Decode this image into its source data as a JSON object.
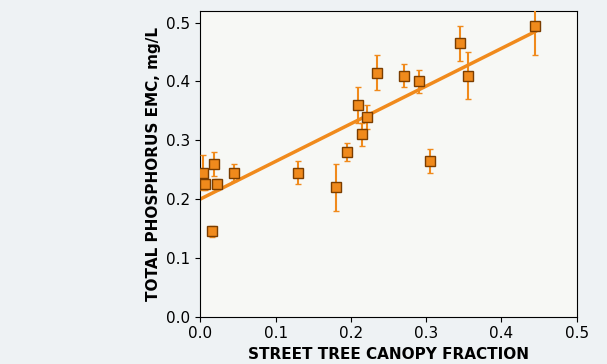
{
  "chart_data": {
    "type": "scatter",
    "x_label": "STREET TREE CANOPY FRACTION",
    "y_label": "TOTAL PHOSPHORUS EMC, mg/L",
    "xlim": [
      0.0,
      0.5
    ],
    "xticks": [
      0.0,
      0.1,
      0.2,
      0.3,
      0.4,
      0.5
    ],
    "ylim": [
      0.0,
      0.52
    ],
    "yticks": [
      0.0,
      0.1,
      0.2,
      0.3,
      0.4,
      0.5
    ],
    "grid": false,
    "series": [
      {
        "type": "scatter",
        "color": "#f08a1c",
        "marker": "square",
        "x": [
          0.003,
          0.006,
          0.015,
          0.018,
          0.022,
          0.045,
          0.13,
          0.18,
          0.195,
          0.21,
          0.215,
          0.222,
          0.235,
          0.27,
          0.29,
          0.305,
          0.345,
          0.355,
          0.445
        ],
        "values": [
          0.245,
          0.225,
          0.145,
          0.26,
          0.225,
          0.245,
          0.245,
          0.22,
          0.28,
          0.36,
          0.31,
          0.34,
          0.415,
          0.41,
          0.4,
          0.265,
          0.465,
          0.41,
          0.495
        ],
        "errors": [
          0.03,
          0.01,
          0.01,
          0.02,
          0.01,
          0.015,
          0.02,
          0.04,
          0.015,
          0.03,
          0.02,
          0.02,
          0.03,
          0.02,
          0.02,
          0.02,
          0.03,
          0.04,
          0.05
        ]
      },
      {
        "type": "line",
        "color": "#f08a1c",
        "line_style": "solid",
        "x": [
          0.0,
          0.445
        ],
        "values": [
          0.2,
          0.485
        ]
      }
    ]
  }
}
